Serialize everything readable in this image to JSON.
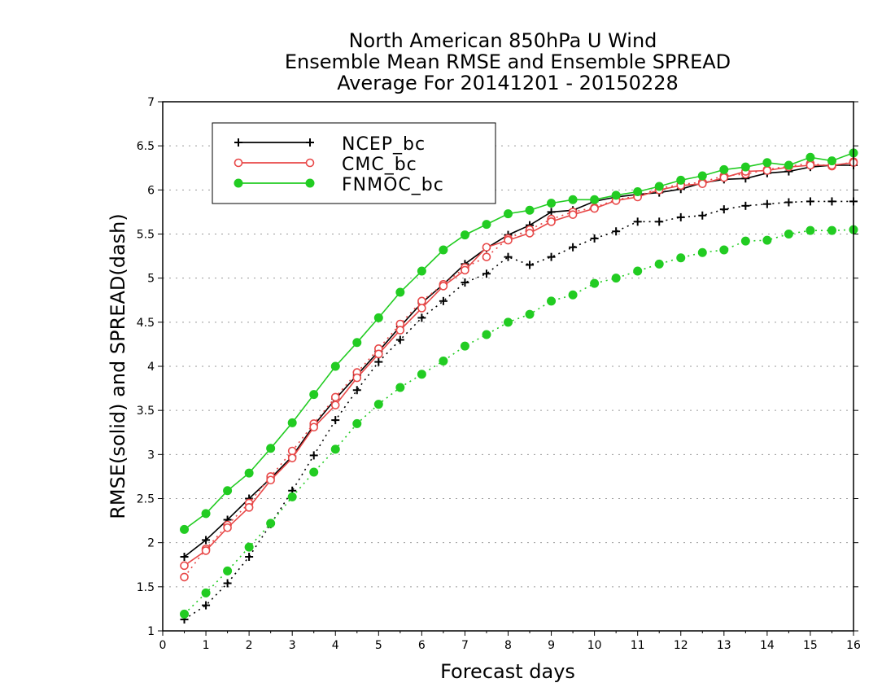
{
  "chart_data": {
    "type": "line",
    "title_lines": [
      "North American 850hPa U Wind",
      "Ensemble Mean RMSE and Ensemble SPREAD",
      "Average For 20141201 - 20150228"
    ],
    "xlabel": "Forecast days",
    "ylabel": "RMSE(solid) and SPREAD(dash)",
    "xlim": [
      0,
      16
    ],
    "ylim": [
      1,
      7
    ],
    "x_ticks": [
      "0",
      "1",
      "2",
      "3",
      "4",
      "5",
      "6",
      "7",
      "8",
      "9",
      "10",
      "11",
      "12",
      "13",
      "14",
      "15",
      "16"
    ],
    "y_ticks": [
      "1",
      "1.5",
      "2",
      "2.5",
      "3",
      "3.5",
      "4",
      "4.5",
      "5",
      "5.5",
      "6",
      "6.5",
      "7"
    ],
    "grid": "horizontal dotted",
    "legend_position": "top-left",
    "x": [
      0.5,
      1,
      1.5,
      2,
      2.5,
      3,
      3.5,
      4,
      4.5,
      5,
      5.5,
      6,
      6.5,
      7,
      7.5,
      8,
      8.5,
      9,
      9.5,
      10,
      10.5,
      11,
      11.5,
      12,
      12.5,
      13,
      13.5,
      14,
      14.5,
      15,
      15.5,
      16
    ],
    "series": [
      {
        "name": "NCEP_bc",
        "color": "#000000",
        "marker": "plus",
        "rmse": [
          1.84,
          2.03,
          2.26,
          2.5,
          2.73,
          2.98,
          3.33,
          3.63,
          3.9,
          4.17,
          4.45,
          4.72,
          4.93,
          5.16,
          5.34,
          5.49,
          5.6,
          5.75,
          5.77,
          5.87,
          5.92,
          5.95,
          5.97,
          6.01,
          6.08,
          6.12,
          6.13,
          6.19,
          6.21,
          6.26,
          6.28,
          6.28
        ],
        "spread": [
          1.13,
          1.29,
          1.54,
          1.84,
          2.21,
          2.59,
          2.99,
          3.39,
          3.73,
          4.05,
          4.3,
          4.55,
          4.74,
          4.95,
          5.05,
          5.24,
          5.15,
          5.24,
          5.35,
          5.45,
          5.53,
          5.64,
          5.64,
          5.69,
          5.71,
          5.78,
          5.82,
          5.84,
          5.86,
          5.87,
          5.87,
          5.87
        ]
      },
      {
        "name": "CMC_bc",
        "color": "#e84848",
        "marker": "open-circle",
        "rmse": [
          1.74,
          1.91,
          2.17,
          2.4,
          2.71,
          2.96,
          3.31,
          3.56,
          3.87,
          4.14,
          4.41,
          4.66,
          4.91,
          5.09,
          5.35,
          5.43,
          5.51,
          5.64,
          5.72,
          5.79,
          5.88,
          5.92,
          6.0,
          6.05,
          6.07,
          6.14,
          6.21,
          6.22,
          6.26,
          6.28,
          6.28,
          6.31
        ],
        "spread": [
          1.61,
          1.93,
          2.2,
          2.45,
          2.75,
          3.04,
          3.35,
          3.65,
          3.93,
          4.2,
          4.48,
          4.74,
          4.93,
          5.12,
          5.24,
          5.45,
          5.55,
          5.67,
          5.75,
          5.8,
          5.89,
          5.93,
          6.02,
          6.06,
          6.09,
          6.16,
          6.18,
          6.23,
          6.27,
          6.3,
          6.27,
          6.32
        ]
      },
      {
        "name": "FNMOC_bc",
        "color": "#22cc22",
        "marker": "filled-circle",
        "rmse": [
          2.15,
          2.33,
          2.59,
          2.79,
          3.07,
          3.36,
          3.68,
          4.0,
          4.27,
          4.55,
          4.84,
          5.08,
          5.32,
          5.49,
          5.61,
          5.73,
          5.77,
          5.85,
          5.89,
          5.89,
          5.94,
          5.98,
          6.04,
          6.11,
          6.16,
          6.23,
          6.26,
          6.31,
          6.28,
          6.37,
          6.33,
          6.42
        ],
        "spread": [
          1.19,
          1.43,
          1.68,
          1.95,
          2.22,
          2.52,
          2.8,
          3.06,
          3.35,
          3.57,
          3.76,
          3.91,
          4.06,
          4.23,
          4.36,
          4.5,
          4.59,
          4.74,
          4.81,
          4.94,
          5.0,
          5.08,
          5.16,
          5.23,
          5.29,
          5.32,
          5.42,
          5.43,
          5.5,
          5.54,
          5.54,
          5.55
        ]
      }
    ]
  }
}
